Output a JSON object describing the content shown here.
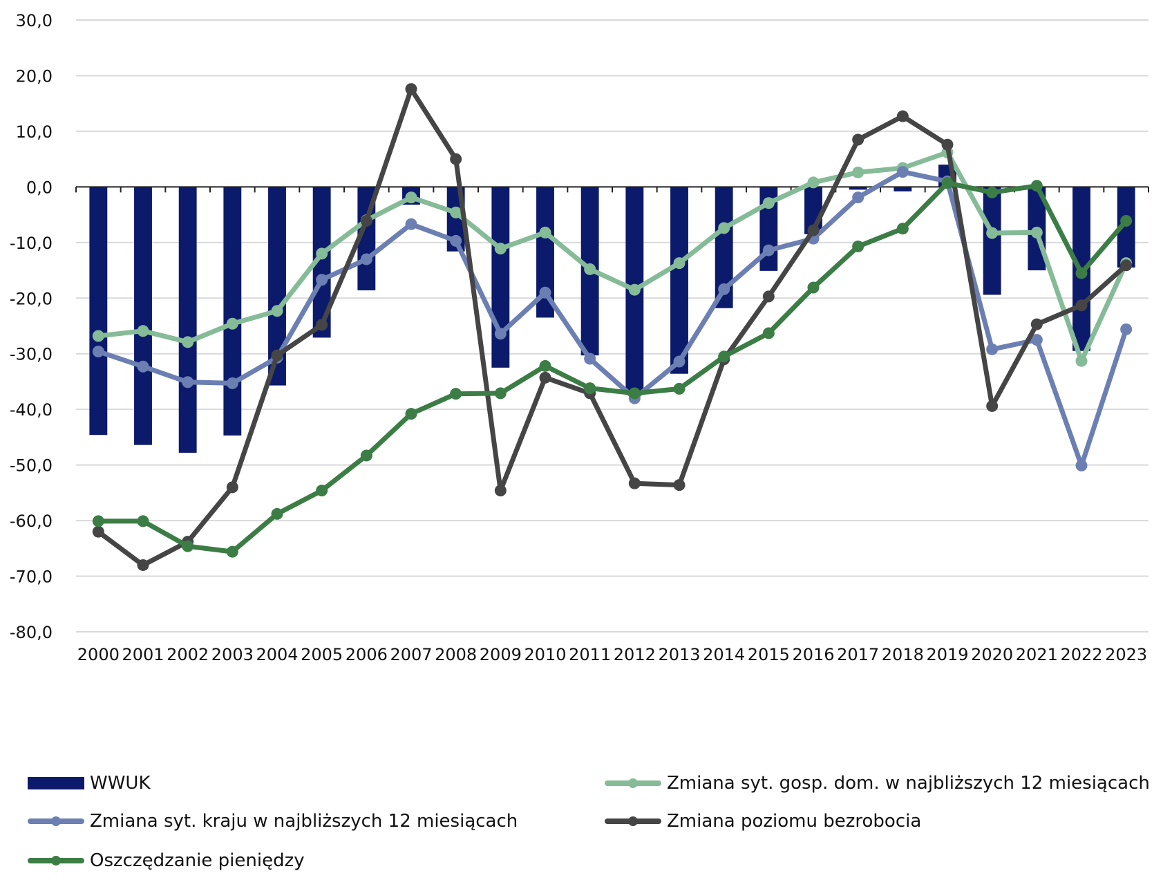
{
  "chart_data": {
    "type": "bar+line",
    "categories": [
      "2000",
      "2001",
      "2002",
      "2003",
      "2004",
      "2005",
      "2006",
      "2007",
      "2008",
      "2009",
      "2010",
      "2011",
      "2012",
      "2013",
      "2014",
      "2015",
      "2016",
      "2017",
      "2018",
      "2019",
      "2020",
      "2021",
      "2022",
      "2023"
    ],
    "ylim": [
      -80,
      30
    ],
    "yticks": [
      "30,0",
      "20,0",
      "10,0",
      "0,0",
      "-10,0",
      "-20,0",
      "-30,0",
      "-40,0",
      "-50,0",
      "-60,0",
      "-70,0",
      "-80,0"
    ],
    "grid": true,
    "legend_position": "bottom",
    "series": [
      {
        "name": "WWUK",
        "kind": "bar",
        "color": "#0c1a6b",
        "values": [
          -44.6,
          -46.4,
          -47.8,
          -44.7,
          -35.7,
          -27.1,
          -18.6,
          -3.2,
          -11.6,
          -32.5,
          -23.5,
          -30.3,
          -37.0,
          -33.6,
          -21.8,
          -15.1,
          -8.5,
          -0.5,
          -0.8,
          4.0,
          -19.4,
          -15.0,
          -29.5,
          -14.5
        ]
      },
      {
        "name": "Zmiana syt. gosp. dom. w najbliższych 12 miesiącach",
        "kind": "line",
        "color": "#86bb98",
        "values": [
          -26.8,
          -25.9,
          -27.9,
          -24.6,
          -22.3,
          -12.0,
          -6.0,
          -1.9,
          -4.6,
          -11.1,
          -8.2,
          -14.8,
          -18.5,
          -13.7,
          -7.4,
          -2.9,
          0.8,
          2.6,
          3.4,
          6.2,
          -8.3,
          -8.2,
          -31.3,
          -13.7
        ]
      },
      {
        "name": "Zmiana syt. kraju w najbliższych 12 miesiącach",
        "kind": "line",
        "color": "#6b7fb3",
        "values": [
          -29.6,
          -32.3,
          -35.1,
          -35.3,
          -30.7,
          -16.7,
          -13.0,
          -6.7,
          -9.7,
          -26.4,
          -19.0,
          -30.9,
          -38.0,
          -31.4,
          -18.4,
          -11.4,
          -9.3,
          -1.9,
          2.7,
          1.0,
          -29.2,
          -27.5,
          -50.1,
          -25.6
        ]
      },
      {
        "name": "Zmiana poziomu bezrobocia",
        "kind": "line",
        "color": "#454545",
        "values": [
          -62.0,
          -68.0,
          -63.8,
          -54.0,
          -30.3,
          -24.8,
          -6.1,
          17.6,
          5.0,
          -54.6,
          -34.3,
          -37.1,
          -53.3,
          -53.6,
          -31.0,
          -19.7,
          -7.8,
          8.5,
          12.7,
          7.6,
          -39.4,
          -24.7,
          -21.3,
          -14.1
        ]
      },
      {
        "name": "Oszczędzanie pieniędzy",
        "kind": "line",
        "color": "#3b7d45",
        "values": [
          -60.1,
          -60.1,
          -64.6,
          -65.6,
          -58.8,
          -54.6,
          -48.3,
          -40.8,
          -37.2,
          -37.1,
          -32.2,
          -36.2,
          -37.1,
          -36.3,
          -30.5,
          -26.3,
          -18.1,
          -10.7,
          -7.5,
          0.7,
          -1.0,
          0.2,
          -15.5,
          -6.1
        ]
      }
    ]
  }
}
